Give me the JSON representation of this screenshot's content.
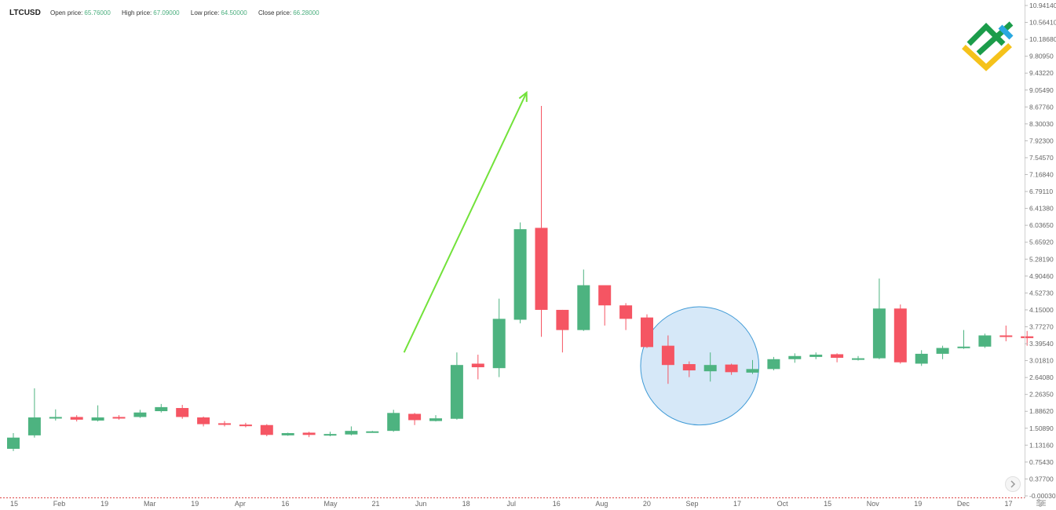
{
  "header": {
    "symbol": "LTCUSD",
    "open_label": "Open price:",
    "open_value": "65.76000",
    "high_label": "High price:",
    "high_value": "67.09000",
    "low_label": "Low price:",
    "low_value": "64.50000",
    "close_label": "Close price:",
    "close_value": "66.28000"
  },
  "colors": {
    "up": "#4db380",
    "down": "#f55563",
    "arrow": "#72e23a",
    "circle_fill": "#cfe4f7",
    "circle_stroke": "#3f9ad6",
    "axis_text": "#666666",
    "logo_green": "#1b9c4a",
    "logo_blue": "#29a8e0",
    "logo_yellow": "#f5c21b"
  },
  "chart_data": {
    "type": "candlestick",
    "y_ticks": [
      "10.94140",
      "10.56410",
      "10.18680",
      "9.80950",
      "9.43220",
      "9.05490",
      "8.67760",
      "8.30030",
      "7.92300",
      "7.54570",
      "7.16840",
      "6.79110",
      "6.41380",
      "6.03650",
      "5.65920",
      "5.28190",
      "4.90460",
      "4.52730",
      "4.15000",
      "3.77270",
      "3.39540",
      "3.01810",
      "2.64080",
      "2.26350",
      "1.88620",
      "1.50890",
      "1.13160",
      "0.75430",
      "0.37700",
      "-0.00030"
    ],
    "ylim": [
      -0.0003,
      10.9414
    ],
    "x_ticks": [
      "15",
      "Feb",
      "19",
      "Mar",
      "19",
      "Apr",
      "16",
      "May",
      "21",
      "Jun",
      "18",
      "Jul",
      "16",
      "Aug",
      "20",
      "Sep",
      "17",
      "Oct",
      "15",
      "Nov",
      "19",
      "Dec",
      "17"
    ],
    "candles": [
      {
        "o": 1.05,
        "h": 1.4,
        "l": 1.0,
        "c": 1.3
      },
      {
        "o": 1.35,
        "h": 2.4,
        "l": 1.3,
        "c": 1.75
      },
      {
        "o": 1.73,
        "h": 1.93,
        "l": 1.68,
        "c": 1.76
      },
      {
        "o": 1.76,
        "h": 1.8,
        "l": 1.66,
        "c": 1.7
      },
      {
        "o": 1.68,
        "h": 2.02,
        "l": 1.66,
        "c": 1.75
      },
      {
        "o": 1.76,
        "h": 1.8,
        "l": 1.7,
        "c": 1.73
      },
      {
        "o": 1.76,
        "h": 1.92,
        "l": 1.74,
        "c": 1.86
      },
      {
        "o": 1.89,
        "h": 2.05,
        "l": 1.86,
        "c": 1.98
      },
      {
        "o": 1.96,
        "h": 2.03,
        "l": 1.72,
        "c": 1.76
      },
      {
        "o": 1.75,
        "h": 1.77,
        "l": 1.55,
        "c": 1.6
      },
      {
        "o": 1.62,
        "h": 1.67,
        "l": 1.55,
        "c": 1.59
      },
      {
        "o": 1.59,
        "h": 1.63,
        "l": 1.53,
        "c": 1.56
      },
      {
        "o": 1.58,
        "h": 1.6,
        "l": 1.33,
        "c": 1.36
      },
      {
        "o": 1.35,
        "h": 1.41,
        "l": 1.34,
        "c": 1.4
      },
      {
        "o": 1.41,
        "h": 1.43,
        "l": 1.31,
        "c": 1.36
      },
      {
        "o": 1.35,
        "h": 1.43,
        "l": 1.33,
        "c": 1.38
      },
      {
        "o": 1.37,
        "h": 1.55,
        "l": 1.35,
        "c": 1.45
      },
      {
        "o": 1.43,
        "h": 1.45,
        "l": 1.42,
        "c": 1.44
      },
      {
        "o": 1.45,
        "h": 1.92,
        "l": 1.43,
        "c": 1.85
      },
      {
        "o": 1.83,
        "h": 1.85,
        "l": 1.58,
        "c": 1.69
      },
      {
        "o": 1.67,
        "h": 1.8,
        "l": 1.66,
        "c": 1.73
      },
      {
        "o": 1.72,
        "h": 3.2,
        "l": 1.7,
        "c": 2.92
      },
      {
        "o": 2.95,
        "h": 3.15,
        "l": 2.6,
        "c": 2.87
      },
      {
        "o": 2.85,
        "h": 4.4,
        "l": 2.65,
        "c": 3.95
      },
      {
        "o": 3.93,
        "h": 6.1,
        "l": 3.85,
        "c": 5.95
      },
      {
        "o": 5.98,
        "h": 8.7,
        "l": 3.55,
        "c": 4.15
      },
      {
        "o": 4.15,
        "h": 4.15,
        "l": 3.2,
        "c": 3.7
      },
      {
        "o": 3.7,
        "h": 5.05,
        "l": 3.68,
        "c": 4.7
      },
      {
        "o": 4.7,
        "h": 4.7,
        "l": 3.8,
        "c": 4.25
      },
      {
        "o": 4.25,
        "h": 4.3,
        "l": 3.7,
        "c": 3.95
      },
      {
        "o": 3.98,
        "h": 4.05,
        "l": 3.3,
        "c": 3.32
      },
      {
        "o": 3.35,
        "h": 3.58,
        "l": 2.5,
        "c": 2.92
      },
      {
        "o": 2.94,
        "h": 3.0,
        "l": 2.65,
        "c": 2.8
      },
      {
        "o": 2.78,
        "h": 3.2,
        "l": 2.55,
        "c": 2.92
      },
      {
        "o": 2.93,
        "h": 2.95,
        "l": 2.7,
        "c": 2.76
      },
      {
        "o": 2.75,
        "h": 3.03,
        "l": 2.72,
        "c": 2.83
      },
      {
        "o": 2.83,
        "h": 3.1,
        "l": 2.8,
        "c": 3.05
      },
      {
        "o": 3.05,
        "h": 3.18,
        "l": 2.97,
        "c": 3.12
      },
      {
        "o": 3.1,
        "h": 3.2,
        "l": 3.05,
        "c": 3.15
      },
      {
        "o": 3.16,
        "h": 3.18,
        "l": 2.98,
        "c": 3.08
      },
      {
        "o": 3.05,
        "h": 3.12,
        "l": 3.02,
        "c": 3.07
      },
      {
        "o": 3.07,
        "h": 4.85,
        "l": 3.05,
        "c": 4.18
      },
      {
        "o": 4.18,
        "h": 4.27,
        "l": 2.95,
        "c": 2.98
      },
      {
        "o": 2.95,
        "h": 3.25,
        "l": 2.9,
        "c": 3.17
      },
      {
        "o": 3.17,
        "h": 3.35,
        "l": 3.05,
        "c": 3.3
      },
      {
        "o": 3.3,
        "h": 3.7,
        "l": 3.28,
        "c": 3.33
      },
      {
        "o": 3.33,
        "h": 3.62,
        "l": 3.3,
        "c": 3.58
      },
      {
        "o": 3.58,
        "h": 3.8,
        "l": 3.45,
        "c": 3.56
      },
      {
        "o": 3.56,
        "h": 3.68,
        "l": 3.35,
        "c": 3.52
      }
    ],
    "annotations": [
      {
        "type": "arrow",
        "x0": 18.5,
        "y0": 3.2,
        "x1": 24.3,
        "y1": 9.0
      },
      {
        "type": "circle",
        "cx": 32.5,
        "cy": 2.9,
        "r_days": 2.8
      }
    ]
  }
}
